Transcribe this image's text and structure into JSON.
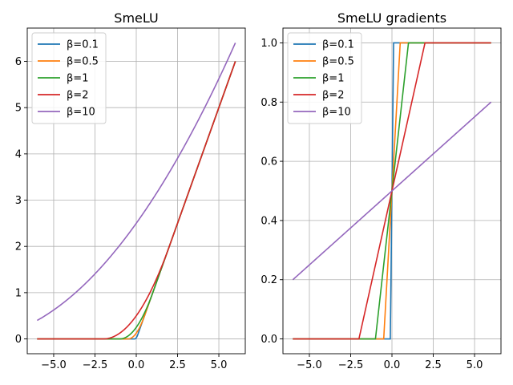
{
  "chart_data": [
    {
      "type": "line",
      "title": "SmeLU",
      "xlabel": "",
      "ylabel": "",
      "xlim": [
        -6.6,
        6.6
      ],
      "ylim": [
        -0.32,
        6.72
      ],
      "xticks": [
        -5,
        -2.5,
        0,
        2.5,
        5
      ],
      "xtick_labels": [
        "−5.0",
        "−2.5",
        "0.0",
        "2.5",
        "5.0"
      ],
      "yticks": [
        0,
        1,
        2,
        3,
        4,
        5,
        6
      ],
      "ytick_labels": [
        "0",
        "1",
        "2",
        "3",
        "4",
        "5",
        "6"
      ],
      "grid": true,
      "legend_position": "top-left",
      "function": "smelu",
      "x_range": [
        -6,
        6
      ],
      "series": [
        {
          "name": "β=0.1",
          "beta": 0.1,
          "color": "#1f77b4"
        },
        {
          "name": "β=0.5",
          "beta": 0.5,
          "color": "#ff7f0e"
        },
        {
          "name": "β=1",
          "beta": 1,
          "color": "#2ca02c"
        },
        {
          "name": "β=2",
          "beta": 2,
          "color": "#d62728"
        },
        {
          "name": "β=10",
          "beta": 10,
          "color": "#9467bd"
        }
      ]
    },
    {
      "type": "line",
      "title": "SmeLU gradients",
      "xlabel": "",
      "ylabel": "",
      "xlim": [
        -6.6,
        6.6
      ],
      "ylim": [
        -0.05,
        1.05
      ],
      "xticks": [
        -5,
        -2.5,
        0,
        2.5,
        5
      ],
      "xtick_labels": [
        "−5.0",
        "−2.5",
        "0.0",
        "2.5",
        "5.0"
      ],
      "yticks": [
        0,
        0.2,
        0.4,
        0.6,
        0.8,
        1.0
      ],
      "ytick_labels": [
        "0.0",
        "0.2",
        "0.4",
        "0.6",
        "0.8",
        "1.0"
      ],
      "grid": true,
      "legend_position": "top-left",
      "function": "smelu_grad",
      "x_range": [
        -6,
        6
      ],
      "series": [
        {
          "name": "β=0.1",
          "beta": 0.1,
          "color": "#1f77b4"
        },
        {
          "name": "β=0.5",
          "beta": 0.5,
          "color": "#ff7f0e"
        },
        {
          "name": "β=1",
          "beta": 1,
          "color": "#2ca02c"
        },
        {
          "name": "β=2",
          "beta": 2,
          "color": "#d62728"
        },
        {
          "name": "β=10",
          "beta": 10,
          "color": "#9467bd"
        }
      ]
    }
  ]
}
